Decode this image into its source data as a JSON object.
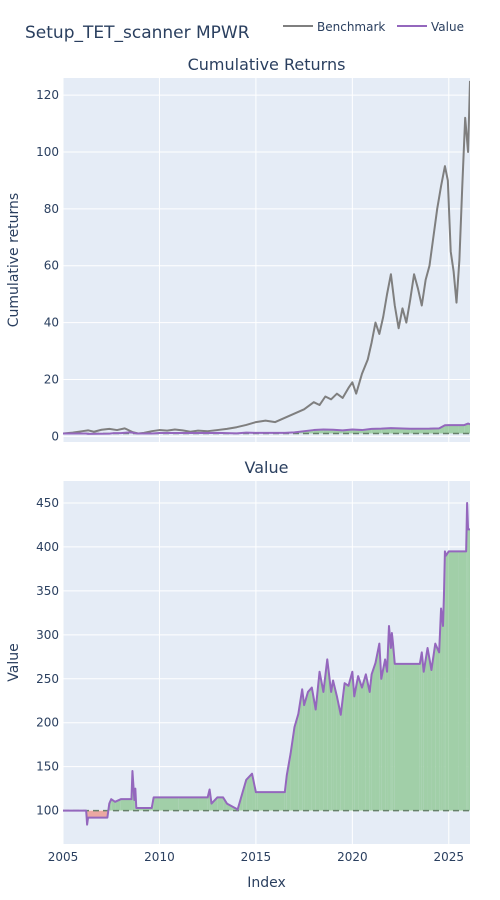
{
  "title": "Setup_TET_scanner MPWR",
  "legend": [
    {
      "name": "Benchmark",
      "color": "#7f7f7f"
    },
    {
      "name": "Value",
      "color": "#9467bd"
    }
  ],
  "colors": {
    "plot_bg": "#e5ecf6",
    "grid": "#ffffff",
    "benchmark": "#7f7f7f",
    "value": "#9467bd",
    "fill_up": "#a1cfa8",
    "fill_down": "#eba8a2",
    "baseline": "#66806a"
  },
  "chart_data": [
    {
      "type": "line",
      "title": "Cumulative Returns",
      "ylabel": "Cumulative returns",
      "xlim": [
        2005,
        2026.1
      ],
      "ylim": [
        -2,
        126
      ],
      "xticks": [
        2005,
        2010,
        2015,
        2020,
        2025
      ],
      "yticks": [
        0,
        20,
        40,
        60,
        80,
        100,
        120
      ],
      "baseline": 1,
      "series": [
        {
          "name": "Benchmark",
          "x": [
            2005.0,
            2005.5,
            2006.0,
            2006.3,
            2006.6,
            2007.0,
            2007.4,
            2007.8,
            2008.2,
            2008.6,
            2008.9,
            2009.2,
            2009.6,
            2010.0,
            2010.4,
            2010.8,
            2011.2,
            2011.6,
            2012.0,
            2012.5,
            2013.0,
            2013.5,
            2014.0,
            2014.5,
            2015.0,
            2015.5,
            2016.0,
            2016.5,
            2017.0,
            2017.5,
            2018.0,
            2018.3,
            2018.6,
            2018.9,
            2019.2,
            2019.5,
            2019.8,
            2020.0,
            2020.2,
            2020.5,
            2020.8,
            2021.0,
            2021.2,
            2021.4,
            2021.6,
            2021.8,
            2022.0,
            2022.2,
            2022.4,
            2022.6,
            2022.8,
            2023.0,
            2023.2,
            2023.4,
            2023.6,
            2023.8,
            2024.0,
            2024.2,
            2024.4,
            2024.6,
            2024.8,
            2024.95,
            2025.1,
            2025.25,
            2025.4,
            2025.55,
            2025.7,
            2025.85,
            2026.0,
            2026.1
          ],
          "values": [
            1.0,
            1.3,
            1.8,
            2.1,
            1.6,
            2.3,
            2.6,
            2.2,
            2.8,
            1.5,
            1.0,
            1.2,
            1.8,
            2.2,
            2.0,
            2.4,
            2.1,
            1.6,
            2.0,
            1.8,
            2.2,
            2.6,
            3.2,
            4.0,
            5.0,
            5.5,
            5.0,
            6.5,
            8.0,
            9.5,
            12.0,
            11.0,
            14.0,
            13.0,
            15.0,
            13.5,
            17.0,
            19.0,
            15.0,
            22.0,
            27.0,
            33.0,
            40.0,
            36.0,
            42.0,
            50.0,
            57.0,
            46.0,
            38.0,
            45.0,
            40.0,
            48.0,
            57.0,
            52.0,
            46.0,
            55.0,
            60.0,
            70.0,
            80.0,
            88.0,
            95.0,
            90.0,
            65.0,
            58.0,
            47.0,
            62.0,
            88.0,
            112.0,
            100.0,
            125.0
          ]
        },
        {
          "name": "Value",
          "x": [
            2005.0,
            2006.2,
            2006.3,
            2007.4,
            2007.6,
            2008.0,
            2008.5,
            2008.8,
            2009.6,
            2010.0,
            2012.5,
            2013.0,
            2014.0,
            2014.5,
            2015.0,
            2016.5,
            2017.0,
            2017.5,
            2018.0,
            2018.5,
            2019.0,
            2019.5,
            2020.0,
            2020.5,
            2021.0,
            2021.5,
            2022.0,
            2023.0,
            2024.0,
            2024.5,
            2024.8,
            2025.0,
            2025.5,
            2025.8,
            2026.0,
            2026.1
          ],
          "values": [
            1.0,
            1.0,
            0.85,
            0.93,
            1.1,
            1.13,
            1.4,
            1.05,
            1.0,
            1.15,
            1.15,
            1.2,
            1.05,
            1.3,
            1.2,
            1.2,
            1.4,
            1.8,
            2.2,
            2.4,
            2.3,
            2.1,
            2.4,
            2.2,
            2.6,
            2.7,
            2.9,
            2.65,
            2.7,
            2.8,
            3.9,
            3.95,
            3.95,
            3.95,
            4.5,
            4.2
          ]
        }
      ]
    },
    {
      "type": "area",
      "title": "Value",
      "xlabel": "Index",
      "ylabel": "Value",
      "xlim": [
        2005,
        2026.1
      ],
      "ylim": [
        62,
        475
      ],
      "xticks": [
        2005,
        2010,
        2015,
        2020,
        2025
      ],
      "yticks": [
        100,
        150,
        200,
        250,
        300,
        350,
        400,
        450
      ],
      "baseline": 100,
      "series": [
        {
          "name": "Value",
          "x": [
            2005.0,
            2006.2,
            2006.22,
            2006.25,
            2006.3,
            2007.3,
            2007.4,
            2007.5,
            2007.7,
            2008.0,
            2008.55,
            2008.6,
            2008.7,
            2008.75,
            2008.8,
            2009.6,
            2009.7,
            2010.0,
            2011.0,
            2012.0,
            2012.5,
            2012.6,
            2012.7,
            2013.0,
            2013.3,
            2013.5,
            2014.0,
            2014.05,
            2014.3,
            2014.5,
            2014.8,
            2015.0,
            2015.1,
            2016.5,
            2016.6,
            2016.8,
            2017.0,
            2017.2,
            2017.4,
            2017.5,
            2017.7,
            2017.9,
            2018.1,
            2018.3,
            2018.5,
            2018.7,
            2018.9,
            2019.0,
            2019.2,
            2019.4,
            2019.6,
            2019.8,
            2020.0,
            2020.1,
            2020.3,
            2020.5,
            2020.7,
            2020.9,
            2021.0,
            2021.2,
            2021.4,
            2021.5,
            2021.7,
            2021.8,
            2021.9,
            2022.0,
            2022.05,
            2022.1,
            2022.2,
            2023.5,
            2023.6,
            2023.7,
            2023.9,
            2024.1,
            2024.3,
            2024.5,
            2024.6,
            2024.7,
            2024.75,
            2024.8,
            2024.85,
            2025.0,
            2025.5,
            2025.9,
            2025.95,
            2026.0,
            2026.1
          ],
          "values": [
            100,
            100,
            94,
            84,
            92,
            92,
            108,
            113,
            110,
            113,
            113,
            145,
            112,
            125,
            103,
            103,
            115,
            115,
            115,
            115,
            115,
            124,
            108,
            115,
            115,
            108,
            102,
            101,
            120,
            135,
            142,
            121,
            121,
            121,
            140,
            165,
            195,
            210,
            238,
            220,
            235,
            240,
            215,
            258,
            235,
            272,
            235,
            248,
            230,
            209,
            245,
            242,
            258,
            230,
            253,
            240,
            255,
            235,
            255,
            268,
            290,
            250,
            272,
            258,
            310,
            285,
            302,
            292,
            267,
            267,
            280,
            258,
            285,
            260,
            290,
            280,
            330,
            310,
            345,
            395,
            390,
            395,
            395,
            395,
            450,
            420,
            420
          ]
        }
      ]
    }
  ]
}
